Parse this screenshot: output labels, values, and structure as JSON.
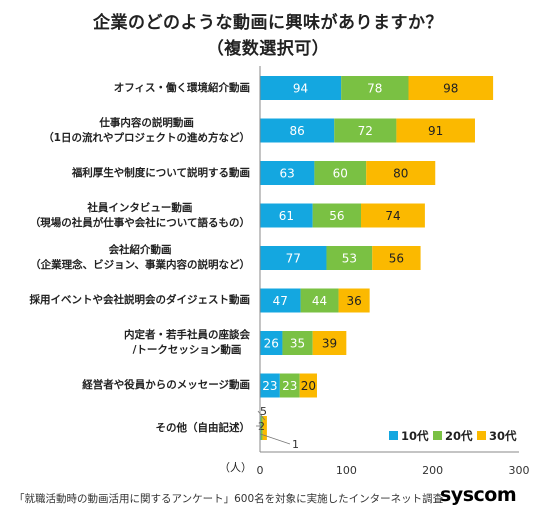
{
  "title": "企業のどのような動画に興味がありますか？",
  "subtitle": "（複数選択可）",
  "unit_label": "（人）",
  "footer": "「就職活動時の動画活用に関するアンケート」600名を対象に実施したインターネット調査",
  "logo_text": "syscom",
  "colors": {
    "10代": "#14a7e0",
    "20代": "#7ac143",
    "30代": "#fbb900"
  },
  "chart_data": {
    "type": "bar",
    "orientation": "horizontal",
    "stacked": true,
    "categories": [
      [
        "オフィス・働く環境紹介動画"
      ],
      [
        "仕事内容の説明動画",
        "（1日の流れやプロジェクトの進め方など）"
      ],
      [
        "福利厚生や制度について説明する動画"
      ],
      [
        "社員インタビュー動画",
        "（現場の社員が仕事や会社について語るもの）"
      ],
      [
        "会社紹介動画",
        "（企業理念、ビジョン、事業内容の説明など）"
      ],
      [
        "採用イベントや会社説明会のダイジェスト動画"
      ],
      [
        "内定者・若手社員の座談会",
        "/トークセッション動画"
      ],
      [
        "経営者や役員からのメッセージ動画"
      ],
      [
        "その他（自由記述）"
      ]
    ],
    "series": [
      {
        "name": "10代",
        "values": [
          94,
          86,
          63,
          61,
          77,
          47,
          26,
          23,
          1
        ]
      },
      {
        "name": "20代",
        "values": [
          78,
          72,
          60,
          56,
          53,
          44,
          35,
          23,
          2
        ]
      },
      {
        "name": "30代",
        "values": [
          98,
          91,
          80,
          74,
          56,
          36,
          39,
          20,
          5
        ]
      }
    ],
    "xlim": [
      0,
      300
    ],
    "xticks": [
      "0",
      "100",
      "200",
      "300"
    ],
    "legend_position": "bottom-right",
    "grid": false
  }
}
